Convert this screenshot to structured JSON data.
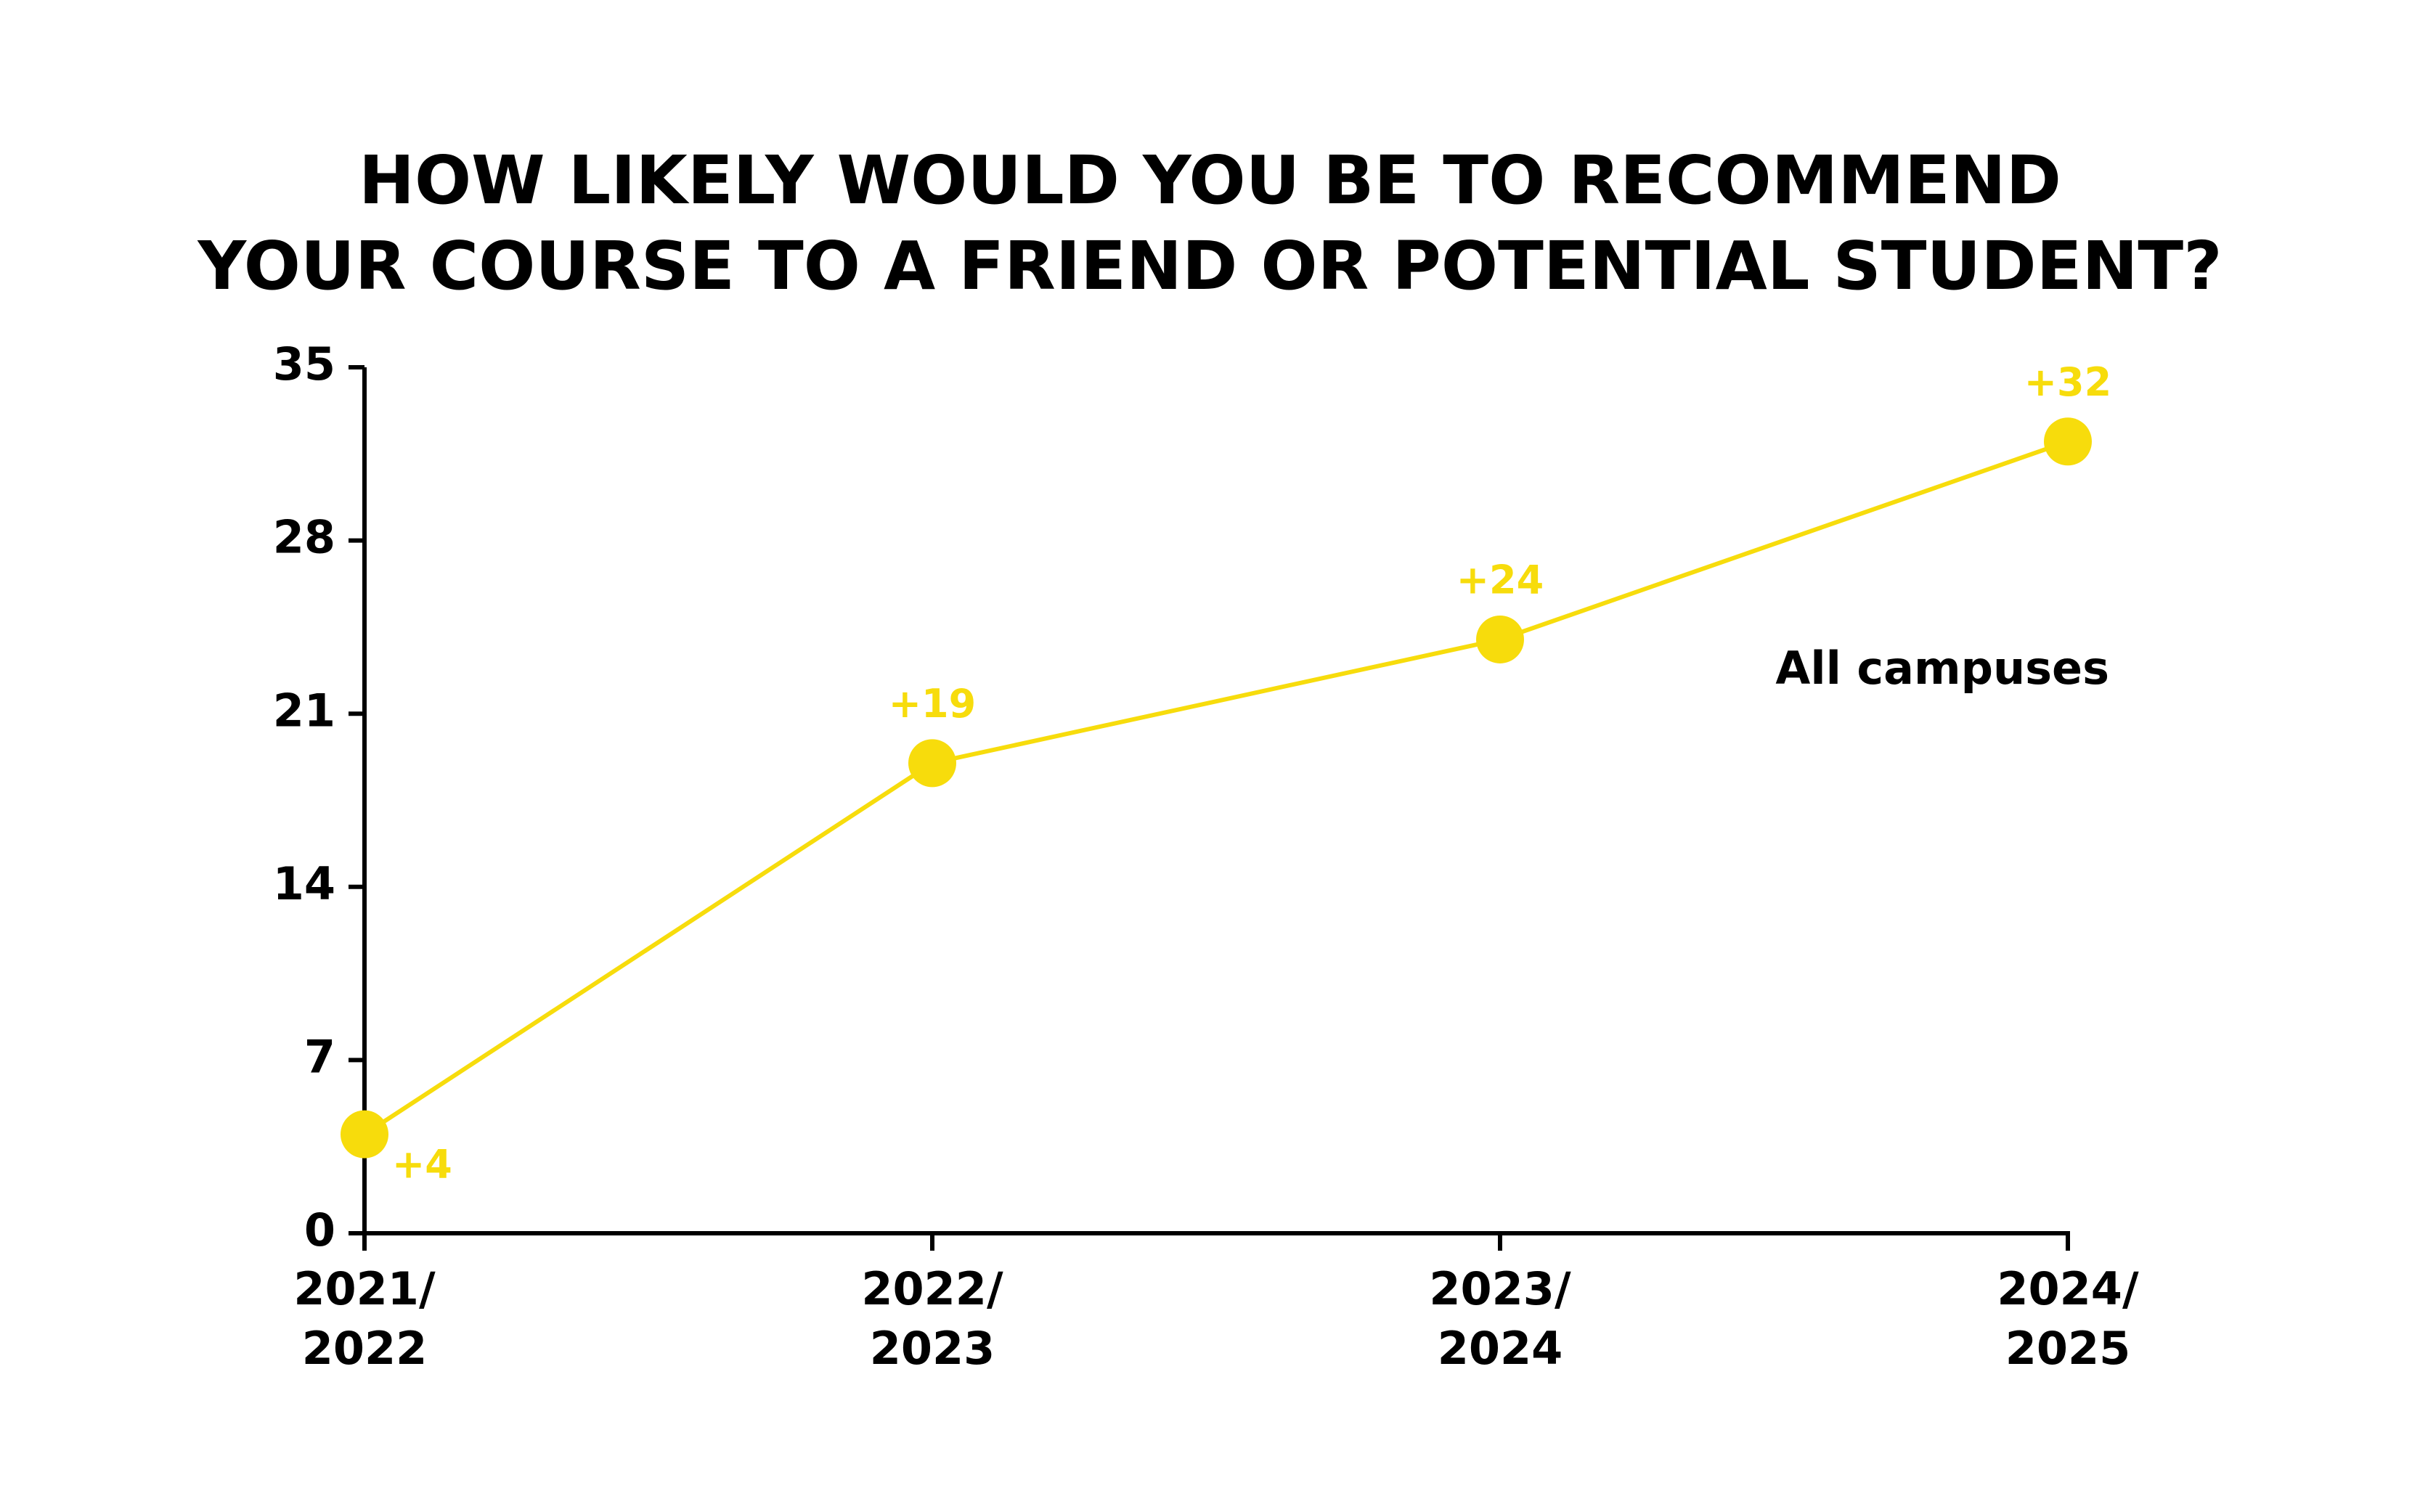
{
  "chart_data": {
    "type": "line",
    "title": "HOW LIKELY WOULD YOU BE TO RECOMMEND\nYOUR COURSE TO A FRIEND OR POTENTIAL STUDENT?",
    "categories": [
      "2021/\n2022",
      "2022/\n2023",
      "2023/\n2024",
      "2024/\n2025"
    ],
    "series": [
      {
        "name": "All campuses",
        "color": "#f7dc0c",
        "values": [
          4,
          19,
          24,
          32
        ],
        "value_labels": [
          "+4",
          "+19",
          "+24",
          "+32"
        ]
      }
    ],
    "ylim": [
      0,
      35
    ],
    "yticks": [
      0,
      7,
      14,
      21,
      28,
      35
    ],
    "grid": false
  }
}
